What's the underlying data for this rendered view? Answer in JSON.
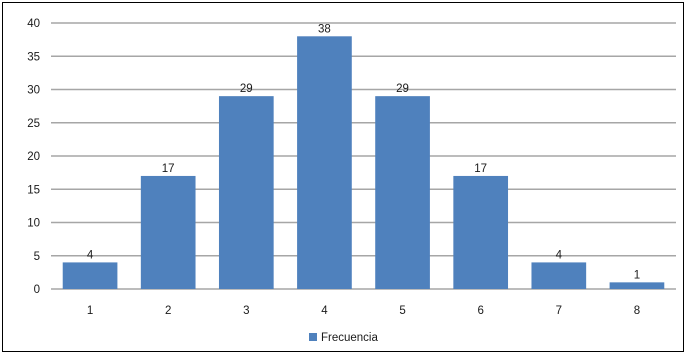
{
  "chart_data": {
    "type": "bar",
    "categories": [
      "1",
      "2",
      "3",
      "4",
      "5",
      "6",
      "7",
      "8"
    ],
    "series": [
      {
        "name": "Frecuencia",
        "values": [
          4,
          17,
          29,
          38,
          29,
          17,
          4,
          1
        ],
        "color": "#4F81BD"
      }
    ],
    "title": "",
    "xlabel": "",
    "ylabel": "",
    "ylim": [
      0,
      40
    ],
    "yticks": [
      "0",
      "5",
      "10",
      "15",
      "20",
      "25",
      "30",
      "35",
      "40"
    ],
    "grid": true,
    "legend_position": "bottom",
    "data_labels": [
      "4",
      "17",
      "29",
      "38",
      "29",
      "17",
      "4",
      "1"
    ]
  }
}
